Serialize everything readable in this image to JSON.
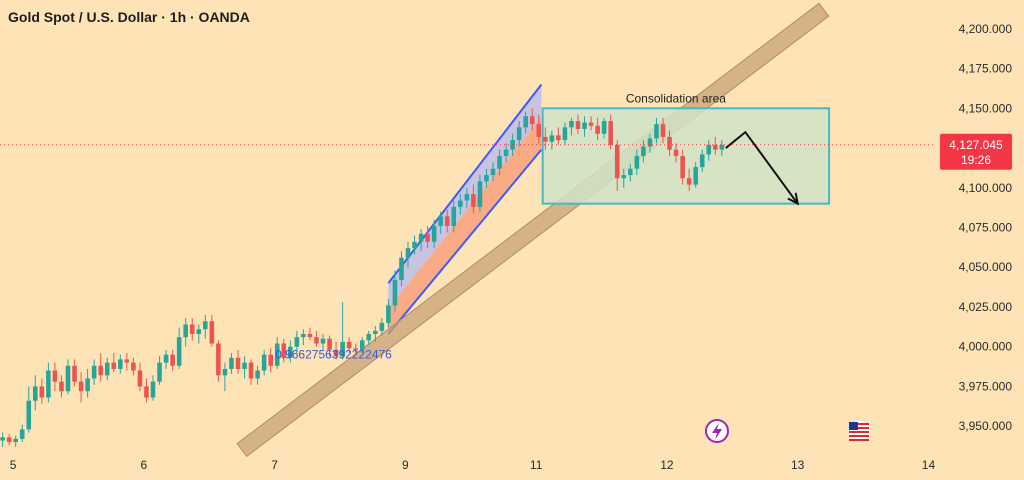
{
  "header": {
    "title": "Gold Spot / U.S. Dollar · 1h · OANDA"
  },
  "colors": {
    "background": "#fde3b6",
    "bull": "#26a69a",
    "bear": "#ef5350",
    "channel_line": "#3d5afe",
    "trendline_fill": "#c8a27a",
    "box_fill": "#cfe3c7",
    "box_stroke": "#4bb7c6",
    "price_label": "#f23645"
  },
  "chart_data": {
    "type": "candlestick",
    "instrument": "Gold Spot / U.S. Dollar",
    "timeframe": "1h",
    "source": "OANDA",
    "x_axis": {
      "tick_labels": [
        "5",
        "6",
        "7",
        "9",
        "11",
        "12",
        "13",
        "14"
      ],
      "tick_values": [
        5,
        6,
        7,
        8,
        9,
        10,
        11,
        12
      ],
      "range": [
        4.9,
        12.05
      ]
    },
    "y_axis": {
      "tick_labels": [
        "4,200.000",
        "4,175.000",
        "4,150.000",
        "4,125.000",
        "4,100.000",
        "4,075.000",
        "4,050.000",
        "4,025.000",
        "4,000.000",
        "3,975.000",
        "3,950.000"
      ],
      "tick_values": [
        4200,
        4175,
        4150,
        4125,
        4100,
        4075,
        4050,
        4025,
        4000,
        3975,
        3950
      ],
      "range": [
        3935,
        4215
      ]
    },
    "current_price": {
      "value": 4127.045,
      "label": "4,127.045",
      "countdown": "19:26"
    },
    "candles": [
      {
        "t": 4.92,
        "o": 3941,
        "h": 3946,
        "l": 3937,
        "c": 3943
      },
      {
        "t": 4.97,
        "o": 3943,
        "h": 3945,
        "l": 3938,
        "c": 3940
      },
      {
        "t": 5.02,
        "o": 3940,
        "h": 3944,
        "l": 3937,
        "c": 3942
      },
      {
        "t": 5.07,
        "o": 3942,
        "h": 3951,
        "l": 3940,
        "c": 3948
      },
      {
        "t": 5.12,
        "o": 3948,
        "h": 3975,
        "l": 3946,
        "c": 3966
      },
      {
        "t": 5.17,
        "o": 3966,
        "h": 3982,
        "l": 3960,
        "c": 3975
      },
      {
        "t": 5.22,
        "o": 3975,
        "h": 3980,
        "l": 3964,
        "c": 3968
      },
      {
        "t": 5.27,
        "o": 3968,
        "h": 3990,
        "l": 3965,
        "c": 3985
      },
      {
        "t": 5.32,
        "o": 3985,
        "h": 3990,
        "l": 3972,
        "c": 3978
      },
      {
        "t": 5.37,
        "o": 3978,
        "h": 3982,
        "l": 3968,
        "c": 3972
      },
      {
        "t": 5.42,
        "o": 3972,
        "h": 3992,
        "l": 3970,
        "c": 3988
      },
      {
        "t": 5.47,
        "o": 3988,
        "h": 3992,
        "l": 3975,
        "c": 3978
      },
      {
        "t": 5.52,
        "o": 3978,
        "h": 3984,
        "l": 3965,
        "c": 3972
      },
      {
        "t": 5.57,
        "o": 3972,
        "h": 3986,
        "l": 3968,
        "c": 3980
      },
      {
        "t": 5.62,
        "o": 3980,
        "h": 3992,
        "l": 3976,
        "c": 3988
      },
      {
        "t": 5.67,
        "o": 3988,
        "h": 3996,
        "l": 3978,
        "c": 3982
      },
      {
        "t": 5.72,
        "o": 3982,
        "h": 3993,
        "l": 3979,
        "c": 3990
      },
      {
        "t": 5.77,
        "o": 3990,
        "h": 3996,
        "l": 3984,
        "c": 3986
      },
      {
        "t": 5.82,
        "o": 3986,
        "h": 3995,
        "l": 3983,
        "c": 3992
      },
      {
        "t": 5.87,
        "o": 3992,
        "h": 3996,
        "l": 3985,
        "c": 3990
      },
      {
        "t": 5.92,
        "o": 3990,
        "h": 3993,
        "l": 3982,
        "c": 3985
      },
      {
        "t": 5.97,
        "o": 3985,
        "h": 3990,
        "l": 3972,
        "c": 3975
      },
      {
        "t": 6.02,
        "o": 3975,
        "h": 3980,
        "l": 3965,
        "c": 3968
      },
      {
        "t": 6.07,
        "o": 3968,
        "h": 3982,
        "l": 3966,
        "c": 3978
      },
      {
        "t": 6.12,
        "o": 3978,
        "h": 3994,
        "l": 3976,
        "c": 3990
      },
      {
        "t": 6.17,
        "o": 3990,
        "h": 3998,
        "l": 3986,
        "c": 3995
      },
      {
        "t": 6.22,
        "o": 3995,
        "h": 3998,
        "l": 3985,
        "c": 3988
      },
      {
        "t": 6.27,
        "o": 3988,
        "h": 4012,
        "l": 3986,
        "c": 4006
      },
      {
        "t": 6.32,
        "o": 4006,
        "h": 4018,
        "l": 4000,
        "c": 4014
      },
      {
        "t": 6.37,
        "o": 4014,
        "h": 4018,
        "l": 4004,
        "c": 4008
      },
      {
        "t": 6.42,
        "o": 4008,
        "h": 4014,
        "l": 4002,
        "c": 4011
      },
      {
        "t": 6.47,
        "o": 4011,
        "h": 4020,
        "l": 4005,
        "c": 4016
      },
      {
        "t": 6.52,
        "o": 4016,
        "h": 4020,
        "l": 4000,
        "c": 4002
      },
      {
        "t": 6.57,
        "o": 4002,
        "h": 4004,
        "l": 3978,
        "c": 3982
      },
      {
        "t": 6.62,
        "o": 3982,
        "h": 3990,
        "l": 3972,
        "c": 3986
      },
      {
        "t": 6.67,
        "o": 3986,
        "h": 3996,
        "l": 3983,
        "c": 3993
      },
      {
        "t": 6.72,
        "o": 3993,
        "h": 3998,
        "l": 3983,
        "c": 3986
      },
      {
        "t": 6.77,
        "o": 3986,
        "h": 3994,
        "l": 3980,
        "c": 3990
      },
      {
        "t": 6.82,
        "o": 3990,
        "h": 3992,
        "l": 3976,
        "c": 3980
      },
      {
        "t": 6.87,
        "o": 3980,
        "h": 3988,
        "l": 3976,
        "c": 3985
      },
      {
        "t": 6.92,
        "o": 3985,
        "h": 3998,
        "l": 3982,
        "c": 3995
      },
      {
        "t": 6.97,
        "o": 3995,
        "h": 3999,
        "l": 3984,
        "c": 3988
      },
      {
        "t": 7.02,
        "o": 3988,
        "h": 4006,
        "l": 3986,
        "c": 4002
      },
      {
        "t": 7.07,
        "o": 4002,
        "h": 4005,
        "l": 3990,
        "c": 3993
      },
      {
        "t": 7.12,
        "o": 3993,
        "h": 4004,
        "l": 3990,
        "c": 4000
      },
      {
        "t": 7.17,
        "o": 4000,
        "h": 4010,
        "l": 3996,
        "c": 4006
      },
      {
        "t": 7.22,
        "o": 4006,
        "h": 4011,
        "l": 4001,
        "c": 4008
      },
      {
        "t": 7.27,
        "o": 4008,
        "h": 4012,
        "l": 4004,
        "c": 4006
      },
      {
        "t": 7.32,
        "o": 4006,
        "h": 4010,
        "l": 4000,
        "c": 4002
      },
      {
        "t": 7.37,
        "o": 4002,
        "h": 4008,
        "l": 3998,
        "c": 4005
      },
      {
        "t": 7.42,
        "o": 4005,
        "h": 4007,
        "l": 3994,
        "c": 3998
      },
      {
        "t": 7.47,
        "o": 3998,
        "h": 4003,
        "l": 3992,
        "c": 3994
      },
      {
        "t": 7.52,
        "o": 3994,
        "h": 4028,
        "l": 3992,
        "c": 4003
      },
      {
        "t": 7.57,
        "o": 4003,
        "h": 4006,
        "l": 3996,
        "c": 3999
      },
      {
        "t": 7.62,
        "o": 3999,
        "h": 4002,
        "l": 3995,
        "c": 3998
      },
      {
        "t": 7.67,
        "o": 3998,
        "h": 4006,
        "l": 3996,
        "c": 4004
      },
      {
        "t": 7.72,
        "o": 4004,
        "h": 4010,
        "l": 4001,
        "c": 4008
      },
      {
        "t": 7.77,
        "o": 4008,
        "h": 4013,
        "l": 4003,
        "c": 4010
      },
      {
        "t": 7.82,
        "o": 4010,
        "h": 4018,
        "l": 4007,
        "c": 4015
      },
      {
        "t": 7.87,
        "o": 4015,
        "h": 4030,
        "l": 4012,
        "c": 4026
      },
      {
        "t": 7.92,
        "o": 4026,
        "h": 4048,
        "l": 4022,
        "c": 4042
      },
      {
        "t": 7.97,
        "o": 4042,
        "h": 4060,
        "l": 4038,
        "c": 4056
      },
      {
        "t": 8.02,
        "o": 4056,
        "h": 4066,
        "l": 4050,
        "c": 4062
      },
      {
        "t": 8.07,
        "o": 4062,
        "h": 4070,
        "l": 4058,
        "c": 4066
      },
      {
        "t": 8.12,
        "o": 4066,
        "h": 4074,
        "l": 4060,
        "c": 4071
      },
      {
        "t": 8.17,
        "o": 4071,
        "h": 4076,
        "l": 4062,
        "c": 4066
      },
      {
        "t": 8.22,
        "o": 4066,
        "h": 4080,
        "l": 4062,
        "c": 4076
      },
      {
        "t": 8.27,
        "o": 4076,
        "h": 4085,
        "l": 4071,
        "c": 4082
      },
      {
        "t": 8.32,
        "o": 4082,
        "h": 4086,
        "l": 4072,
        "c": 4076
      },
      {
        "t": 8.37,
        "o": 4076,
        "h": 4092,
        "l": 4072,
        "c": 4088
      },
      {
        "t": 8.42,
        "o": 4088,
        "h": 4096,
        "l": 4083,
        "c": 4092
      },
      {
        "t": 8.47,
        "o": 4092,
        "h": 4100,
        "l": 4087,
        "c": 4096
      },
      {
        "t": 8.52,
        "o": 4096,
        "h": 4102,
        "l": 4084,
        "c": 4088
      },
      {
        "t": 8.57,
        "o": 4088,
        "h": 4108,
        "l": 4085,
        "c": 4104
      },
      {
        "t": 8.62,
        "o": 4104,
        "h": 4112,
        "l": 4100,
        "c": 4108
      },
      {
        "t": 8.67,
        "o": 4108,
        "h": 4116,
        "l": 4104,
        "c": 4112
      },
      {
        "t": 8.72,
        "o": 4112,
        "h": 4124,
        "l": 4108,
        "c": 4120
      },
      {
        "t": 8.77,
        "o": 4120,
        "h": 4128,
        "l": 4116,
        "c": 4124
      },
      {
        "t": 8.82,
        "o": 4124,
        "h": 4134,
        "l": 4120,
        "c": 4130
      },
      {
        "t": 8.87,
        "o": 4130,
        "h": 4142,
        "l": 4126,
        "c": 4138
      },
      {
        "t": 8.92,
        "o": 4138,
        "h": 4148,
        "l": 4134,
        "c": 4145
      },
      {
        "t": 8.97,
        "o": 4145,
        "h": 4150,
        "l": 4136,
        "c": 4140
      },
      {
        "t": 9.02,
        "o": 4140,
        "h": 4146,
        "l": 4128,
        "c": 4132
      },
      {
        "t": 9.07,
        "o": 4132,
        "h": 4138,
        "l": 4124,
        "c": 4129
      },
      {
        "t": 9.12,
        "o": 4129,
        "h": 4136,
        "l": 4124,
        "c": 4133
      },
      {
        "t": 9.17,
        "o": 4133,
        "h": 4138,
        "l": 4127,
        "c": 4130
      },
      {
        "t": 9.22,
        "o": 4130,
        "h": 4141,
        "l": 4127,
        "c": 4138
      },
      {
        "t": 9.27,
        "o": 4138,
        "h": 4144,
        "l": 4133,
        "c": 4142
      },
      {
        "t": 9.32,
        "o": 4142,
        "h": 4146,
        "l": 4134,
        "c": 4137
      },
      {
        "t": 9.37,
        "o": 4137,
        "h": 4145,
        "l": 4132,
        "c": 4141
      },
      {
        "t": 9.42,
        "o": 4141,
        "h": 4145,
        "l": 4136,
        "c": 4139
      },
      {
        "t": 9.47,
        "o": 4139,
        "h": 4144,
        "l": 4130,
        "c": 4134
      },
      {
        "t": 9.52,
        "o": 4134,
        "h": 4144,
        "l": 4131,
        "c": 4142
      },
      {
        "t": 9.57,
        "o": 4142,
        "h": 4146,
        "l": 4124,
        "c": 4127
      },
      {
        "t": 9.62,
        "o": 4127,
        "h": 4130,
        "l": 4098,
        "c": 4106
      },
      {
        "t": 9.67,
        "o": 4106,
        "h": 4112,
        "l": 4100,
        "c": 4108
      },
      {
        "t": 9.72,
        "o": 4108,
        "h": 4115,
        "l": 4104,
        "c": 4112
      },
      {
        "t": 9.77,
        "o": 4112,
        "h": 4124,
        "l": 4108,
        "c": 4120
      },
      {
        "t": 9.82,
        "o": 4120,
        "h": 4130,
        "l": 4116,
        "c": 4126
      },
      {
        "t": 9.87,
        "o": 4126,
        "h": 4134,
        "l": 4122,
        "c": 4131
      },
      {
        "t": 9.92,
        "o": 4131,
        "h": 4144,
        "l": 4128,
        "c": 4140
      },
      {
        "t": 9.97,
        "o": 4140,
        "h": 4144,
        "l": 4128,
        "c": 4132
      },
      {
        "t": 10.02,
        "o": 4132,
        "h": 4136,
        "l": 4120,
        "c": 4124
      },
      {
        "t": 10.07,
        "o": 4124,
        "h": 4128,
        "l": 4116,
        "c": 4120
      },
      {
        "t": 10.12,
        "o": 4120,
        "h": 4124,
        "l": 4102,
        "c": 4106
      },
      {
        "t": 10.17,
        "o": 4106,
        "h": 4112,
        "l": 4098,
        "c": 4102
      },
      {
        "t": 10.22,
        "o": 4102,
        "h": 4116,
        "l": 4100,
        "c": 4113
      },
      {
        "t": 10.27,
        "o": 4113,
        "h": 4124,
        "l": 4110,
        "c": 4121
      },
      {
        "t": 10.32,
        "o": 4121,
        "h": 4130,
        "l": 4117,
        "c": 4127
      },
      {
        "t": 10.37,
        "o": 4127,
        "h": 4132,
        "l": 4121,
        "c": 4124
      },
      {
        "t": 10.42,
        "o": 4124,
        "h": 4130,
        "l": 4120,
        "c": 4127
      }
    ],
    "drawings": [
      {
        "type": "rising_channel",
        "label": "",
        "points": [
          [
            7.87,
            4040
          ],
          [
            9.04,
            4165
          ],
          [
            7.87,
            4008
          ],
          [
            9.04,
            4124
          ]
        ]
      },
      {
        "type": "trendline_band",
        "label": "",
        "points": [
          [
            6.75,
            3935
          ],
          [
            11.2,
            4212
          ]
        ]
      },
      {
        "type": "rectangle",
        "label": "Consolidation area",
        "price_range": [
          4090,
          4150
        ],
        "time_range": [
          9.05,
          11.24
        ]
      },
      {
        "type": "arrow_path",
        "label": "",
        "points": [
          [
            10.45,
            4125
          ],
          [
            10.6,
            4135
          ],
          [
            11.0,
            4090
          ]
        ]
      },
      {
        "type": "fib_text",
        "label": "0.9662756392222476",
        "point": [
          7.45,
          3995
        ]
      }
    ]
  }
}
